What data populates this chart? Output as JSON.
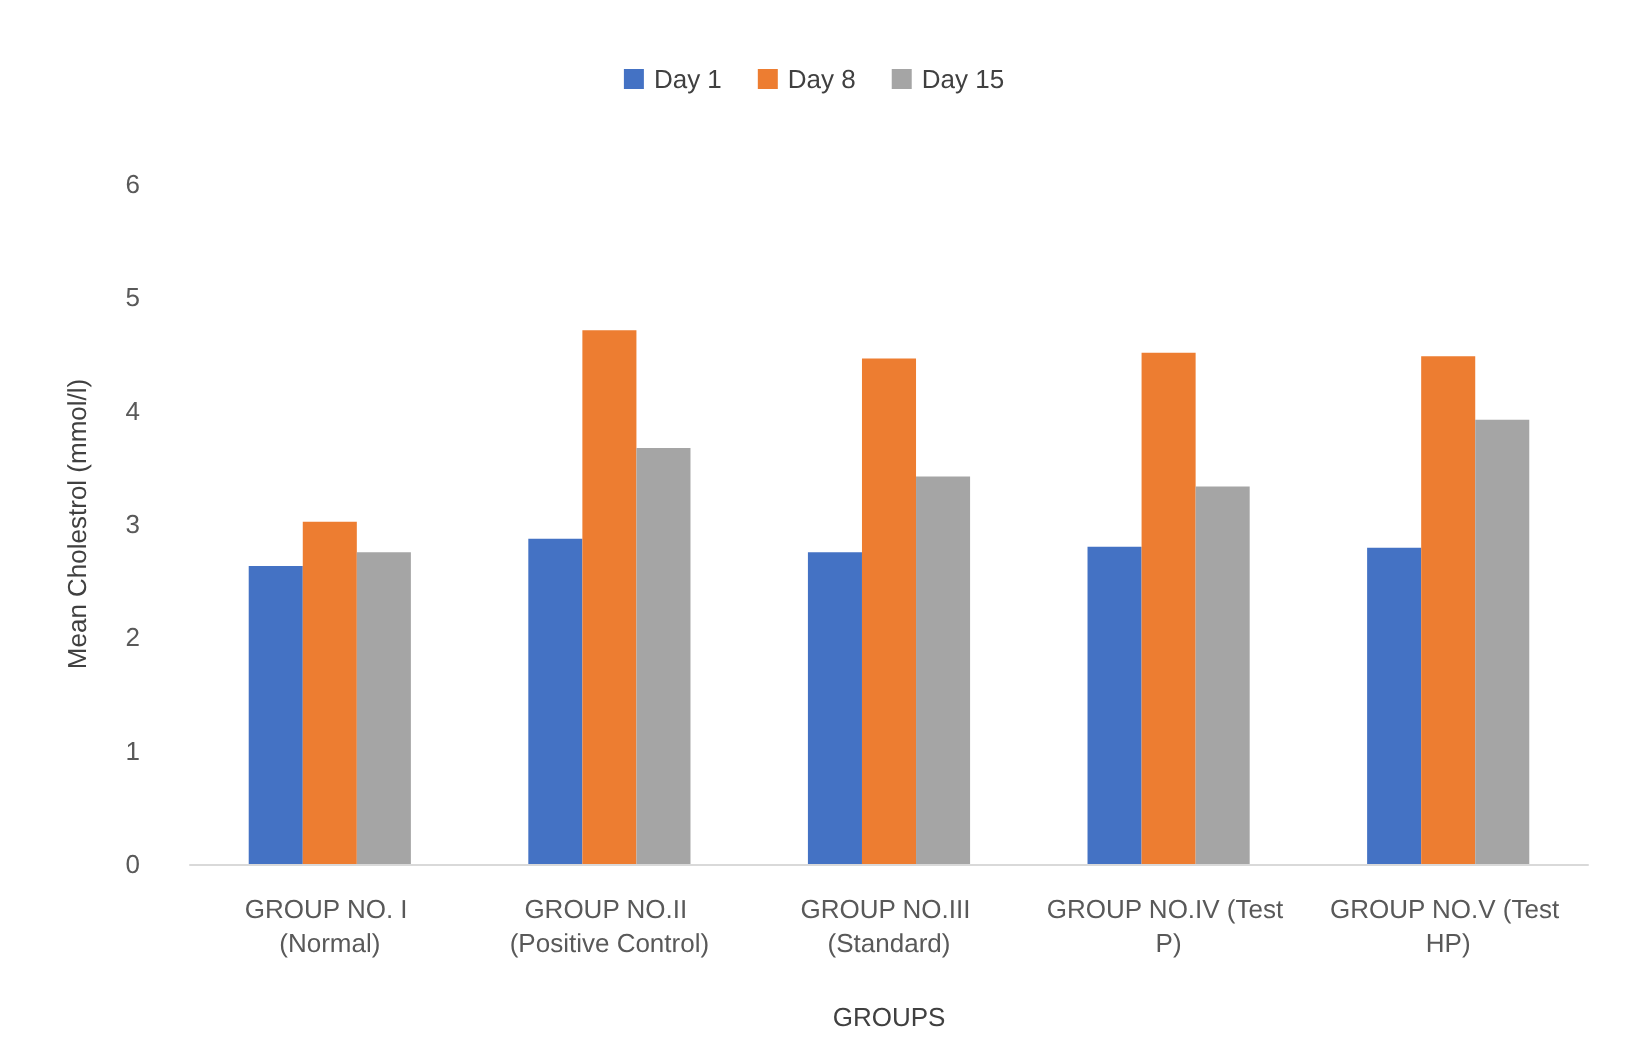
{
  "chart_data": {
    "type": "bar",
    "xlabel": "GROUPS",
    "ylabel": "Mean Cholestrol (mmol/l)",
    "categories": [
      "GROUP NO. I (Normal)",
      "GROUP NO.II (Positive Control)",
      "GROUP NO.III (Standard)",
      "GROUP NO.IV (Test P)",
      "GROUP NO.V (Test HP)"
    ],
    "series": [
      {
        "name": "Day 1",
        "color": "#4472c4",
        "values": [
          2.63,
          2.87,
          2.75,
          2.8,
          2.79
        ]
      },
      {
        "name": "Day 8",
        "color": "#ed7d31",
        "values": [
          3.02,
          4.71,
          4.46,
          4.51,
          4.48
        ]
      },
      {
        "name": "Day 15",
        "color": "#a5a5a5",
        "values": [
          2.75,
          3.67,
          3.42,
          3.33,
          3.92
        ]
      }
    ],
    "ylim": [
      0,
      6
    ],
    "yticks": [
      0,
      1,
      2,
      3,
      4,
      5,
      6
    ],
    "grid": false,
    "legend": "top"
  }
}
